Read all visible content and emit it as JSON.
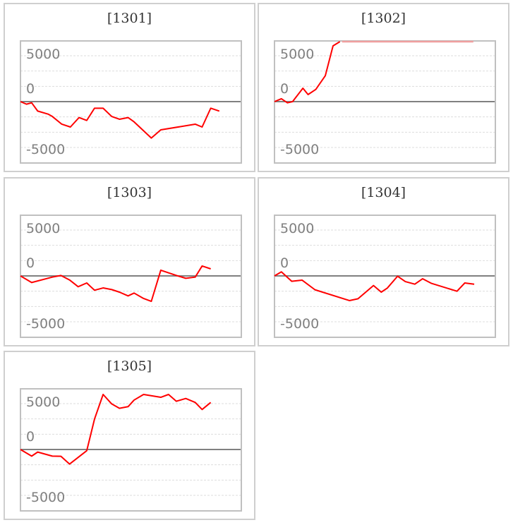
{
  "colors": {
    "line": "#ff0000",
    "clipped_line": "#f0a0a0",
    "zero_line": "#808080",
    "grid": "#dddddd",
    "frame": "#c0c0c0"
  },
  "chart_data": [
    {
      "type": "line",
      "title": "[1301]",
      "ylim": [
        -6600,
        6600
      ],
      "xlim": [
        0,
        25.5
      ],
      "yticks": [
        "5000",
        "0",
        "-5000"
      ],
      "grid": true,
      "x": [
        0,
        0.7,
        1.3,
        2.0,
        3.2,
        3.7,
        4.8,
        5.8,
        6.8,
        7.7,
        8.6,
        9.6,
        10.6,
        11.5,
        12.5,
        13.2,
        15.2,
        16.3,
        20.3,
        21.1,
        22.1,
        23.1
      ],
      "values": [
        0,
        -280,
        -130,
        -1030,
        -1360,
        -1620,
        -2460,
        -2770,
        -1740,
        -2050,
        -720,
        -720,
        -1620,
        -1920,
        -1740,
        -2210,
        -3970,
        -3080,
        -2460,
        -2770,
        -720,
        -1030
      ]
    },
    {
      "type": "line",
      "title": "[1302]",
      "ylim": [
        -6600,
        6600
      ],
      "xlim": [
        0,
        25.5
      ],
      "yticks": [
        "5000",
        "0",
        "-5000"
      ],
      "grid": true,
      "x": [
        0,
        0.8,
        1.5,
        2.1,
        3.3,
        3.9,
        4.8,
        5.9,
        6.8,
        7.6
      ],
      "values": [
        0,
        310,
        -130,
        0,
        1460,
        770,
        1330,
        2820,
        6080,
        6590
      ],
      "clipped_above_x": [
        7.6,
        23.1
      ]
    },
    {
      "type": "line",
      "title": "[1303]",
      "ylim": [
        -6600,
        6600
      ],
      "xlim": [
        0,
        25.5
      ],
      "yticks": [
        "5000",
        "0",
        "-5000"
      ],
      "grid": true,
      "x": [
        0,
        1.3,
        3.7,
        4.7,
        5.7,
        6.7,
        7.7,
        8.6,
        9.6,
        10.6,
        11.5,
        12.5,
        13.2,
        14.3,
        15.2,
        16.3,
        18.1,
        19.2,
        20.3,
        21.1,
        22.1
      ],
      "values": [
        0,
        -720,
        -130,
        50,
        -440,
        -1180,
        -770,
        -1560,
        -1310,
        -1490,
        -1770,
        -2180,
        -1870,
        -2460,
        -2770,
        620,
        50,
        -260,
        -130,
        1080,
        770
      ]
    },
    {
      "type": "line",
      "title": "[1304]",
      "ylim": [
        -6600,
        6600
      ],
      "xlim": [
        0,
        25.5
      ],
      "yticks": [
        "5000",
        "0",
        "-5000"
      ],
      "grid": true,
      "x": [
        0,
        0.8,
        2.0,
        3.2,
        4.7,
        8.7,
        9.7,
        11.5,
        12.4,
        13.1,
        14.3,
        15.2,
        16.3,
        17.2,
        18.2,
        21.2,
        22.1,
        23.2
      ],
      "values": [
        0,
        440,
        -590,
        -460,
        -1510,
        -2690,
        -2490,
        -1050,
        -1770,
        -1330,
        -30,
        -620,
        -900,
        -310,
        -800,
        -1670,
        -770,
        -900
      ]
    },
    {
      "type": "line",
      "title": "[1305]",
      "ylim": [
        -6600,
        6600
      ],
      "xlim": [
        0,
        25.5
      ],
      "yticks": [
        "5000",
        "0",
        "-5000"
      ],
      "grid": true,
      "x": [
        0,
        1.3,
        2.0,
        3.7,
        4.7,
        5.7,
        7.7,
        8.6,
        9.6,
        10.6,
        11.5,
        12.5,
        13.2,
        14.3,
        16.3,
        17.2,
        18.1,
        19.2,
        20.3,
        21.1,
        22.1
      ],
      "values": [
        0,
        -720,
        -280,
        -720,
        -740,
        -1590,
        -130,
        3310,
        6000,
        4970,
        4490,
        4670,
        5390,
        6000,
        5690,
        6000,
        5260,
        5560,
        5130,
        4360,
        5130
      ]
    }
  ]
}
